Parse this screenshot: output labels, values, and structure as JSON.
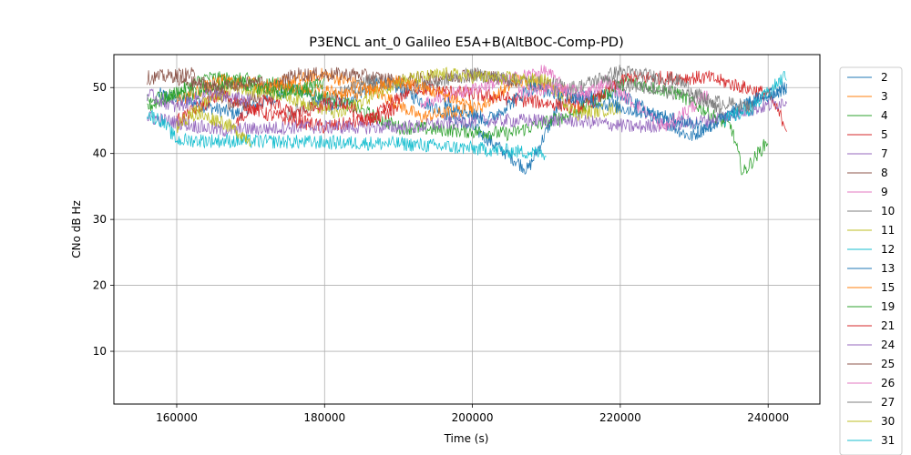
{
  "chart_data": {
    "type": "line",
    "title": "P3ENCL ant_0 Galileo E5A+B(AltBOC-Comp-PD)",
    "xlabel": "Time (s)",
    "ylabel": "CNo dB Hz",
    "xlim": [
      151500,
      247000
    ],
    "ylim": [
      2,
      55
    ],
    "xticks": [
      160000,
      180000,
      200000,
      220000,
      240000
    ],
    "yticks": [
      10,
      20,
      30,
      40,
      50
    ],
    "grid": true,
    "legend_position": "right-outside",
    "series": [
      {
        "name": "2",
        "color": "#1f77b4",
        "points": [
          [
            157500,
            49
          ],
          [
            168000,
            46
          ],
          [
            176000,
            50
          ],
          [
            181000,
            47
          ],
          [
            188000,
            51
          ],
          [
            200000,
            44
          ],
          [
            207500,
            37.5
          ],
          [
            212000,
            48
          ],
          [
            220000,
            49
          ],
          [
            229500,
            42.5
          ],
          [
            236000,
            47
          ],
          [
            242500,
            50
          ]
        ]
      },
      {
        "name": "3",
        "color": "#ff7f0e",
        "points": [
          [
            171000,
            50
          ],
          [
            180000,
            52
          ],
          [
            186000,
            50
          ],
          [
            193000,
            45.5
          ],
          [
            201000,
            47
          ],
          [
            206000,
            51
          ],
          [
            212000,
            50
          ],
          [
            215000,
            46
          ]
        ]
      },
      {
        "name": "4",
        "color": "#2ca02c",
        "points": [
          [
            156000,
            47
          ],
          [
            164000,
            51.5
          ],
          [
            172000,
            51
          ],
          [
            182000,
            48
          ],
          [
            190000,
            44
          ],
          [
            205000,
            43
          ],
          [
            213500,
            46
          ],
          [
            221000,
            51
          ],
          [
            228000,
            49
          ],
          [
            235000,
            44
          ],
          [
            236600,
            37
          ],
          [
            240000,
            42
          ]
        ]
      },
      {
        "name": "5",
        "color": "#d62728",
        "points": [
          [
            160000,
            45
          ],
          [
            166000,
            49
          ],
          [
            172000,
            46
          ],
          [
            180000,
            44
          ],
          [
            186000,
            45
          ],
          [
            192000,
            50
          ],
          [
            215000,
            47
          ],
          [
            221000,
            51.5
          ],
          [
            232000,
            51.5
          ],
          [
            240000,
            49
          ],
          [
            242500,
            44
          ]
        ]
      },
      {
        "name": "7",
        "color": "#9467bd",
        "points": [
          [
            156000,
            45.5
          ],
          [
            166000,
            43.5
          ],
          [
            176000,
            44
          ],
          [
            192000,
            44
          ],
          [
            200000,
            45
          ],
          [
            214000,
            45
          ],
          [
            222000,
            44
          ],
          [
            232000,
            45
          ],
          [
            242500,
            48
          ]
        ]
      },
      {
        "name": "8",
        "color": "#8c564b",
        "points": [
          [
            156000,
            51.5
          ],
          [
            162000,
            52
          ],
          [
            168000,
            47
          ],
          [
            176000,
            52
          ],
          [
            184000,
            52
          ],
          [
            190000,
            51
          ],
          [
            200000,
            52
          ],
          [
            206000,
            51
          ]
        ]
      },
      {
        "name": "9",
        "color": "#e377c2",
        "points": [
          [
            193000,
            47.5
          ],
          [
            196000,
            48.5
          ],
          [
            204000,
            51
          ],
          [
            210000,
            52.5
          ],
          [
            214000,
            48
          ],
          [
            218000,
            51
          ],
          [
            226000,
            44
          ],
          [
            232000,
            49
          ]
        ]
      },
      {
        "name": "10",
        "color": "#7f7f7f",
        "points": [
          [
            175000,
            46
          ],
          [
            180000,
            48
          ],
          [
            186000,
            51
          ],
          [
            192000,
            50
          ],
          [
            200000,
            52
          ],
          [
            214000,
            50
          ],
          [
            220000,
            52.5
          ],
          [
            228000,
            51
          ],
          [
            234000,
            46
          ]
        ]
      },
      {
        "name": "11",
        "color": "#bcbd22",
        "points": [
          [
            160000,
            44
          ],
          [
            164000,
            48
          ],
          [
            168000,
            50
          ],
          [
            174000,
            49
          ],
          [
            182000,
            46
          ],
          [
            190000,
            51
          ],
          [
            196000,
            52
          ],
          [
            210000,
            51
          ],
          [
            214000,
            46
          ],
          [
            220000,
            47
          ]
        ]
      },
      {
        "name": "12",
        "color": "#17becf",
        "points": [
          [
            156000,
            46
          ],
          [
            158000,
            45
          ],
          [
            160000,
            42
          ],
          [
            162000,
            42
          ],
          [
            190000,
            41.5
          ],
          [
            210000,
            40
          ]
        ]
      },
      {
        "name": "13",
        "color": "#1f77b4",
        "points": [
          [
            196000,
            48
          ],
          [
            202000,
            45
          ],
          [
            208000,
            50
          ],
          [
            216000,
            48
          ],
          [
            224000,
            46
          ],
          [
            232000,
            44
          ],
          [
            238000,
            48
          ],
          [
            242500,
            50
          ]
        ]
      },
      {
        "name": "15",
        "color": "#ff7f0e",
        "points": [
          [
            160000,
            48
          ],
          [
            166000,
            51
          ],
          [
            176000,
            50
          ],
          [
            184000,
            49
          ],
          [
            190000,
            51
          ],
          [
            196000,
            49
          ],
          [
            200000,
            47
          ]
        ]
      },
      {
        "name": "19",
        "color": "#2ca02c",
        "points": [
          [
            156000,
            48
          ],
          [
            162000,
            49
          ],
          [
            168000,
            51
          ],
          [
            174000,
            49
          ],
          [
            180000,
            50.5
          ]
        ]
      },
      {
        "name": "21",
        "color": "#d62728",
        "points": [
          [
            168000,
            45
          ],
          [
            172000,
            48
          ],
          [
            176000,
            46
          ],
          [
            182000,
            48
          ],
          [
            186000,
            45
          ],
          [
            190000,
            47
          ]
        ]
      },
      {
        "name": "24",
        "color": "#9467bd",
        "points": [
          [
            156000,
            49
          ],
          [
            160000,
            47
          ],
          [
            164000,
            49
          ],
          [
            170000,
            48
          ]
        ]
      },
      {
        "name": "25",
        "color": "#8c564b",
        "points": [
          [
            160000,
            51
          ],
          [
            166000,
            50
          ],
          [
            172000,
            51
          ]
        ]
      },
      {
        "name": "26",
        "color": "#e377c2",
        "points": [
          [
            206000,
            49
          ],
          [
            210000,
            50
          ],
          [
            216000,
            49
          ]
        ]
      },
      {
        "name": "27",
        "color": "#7f7f7f",
        "points": [
          [
            218000,
            51
          ],
          [
            224000,
            50
          ],
          [
            232000,
            48
          ],
          [
            238000,
            47
          ]
        ]
      },
      {
        "name": "30",
        "color": "#bcbd22",
        "points": [
          [
            162000,
            46
          ],
          [
            166000,
            45
          ],
          [
            170000,
            42
          ]
        ]
      },
      {
        "name": "31",
        "color": "#17becf",
        "points": [
          [
            234000,
            45
          ],
          [
            238000,
            47
          ],
          [
            242500,
            52
          ]
        ]
      }
    ]
  }
}
